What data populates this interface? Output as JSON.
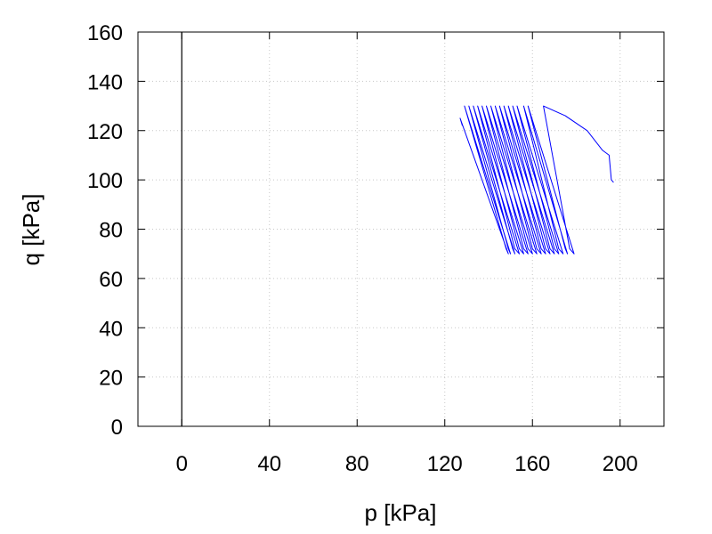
{
  "chart_data": {
    "type": "line",
    "xlabel": "p [kPa]",
    "ylabel": "q [kPa]",
    "xlim": [
      -20,
      220
    ],
    "ylim": [
      0,
      160
    ],
    "x_ticks": [
      0,
      40,
      80,
      120,
      160,
      200
    ],
    "y_ticks": [
      0,
      20,
      40,
      60,
      80,
      100,
      120,
      140,
      160
    ],
    "grid": true,
    "vertical_reference_line_x": 0,
    "series": [
      {
        "color": "#0000ff",
        "x": [
          197,
          196,
          195,
          192,
          185,
          175,
          165,
          177,
          179,
          158,
          175,
          176,
          156,
          172,
          174,
          153,
          170,
          172,
          151,
          168,
          170,
          149,
          166,
          168,
          147,
          164,
          166,
          145,
          162,
          164,
          143,
          160,
          162,
          141,
          158,
          160,
          139,
          156,
          158,
          137,
          154,
          156,
          135,
          152,
          154,
          133,
          151,
          152,
          131,
          149,
          150,
          129,
          148,
          149,
          127,
          128
        ],
        "y": [
          99,
          100,
          110,
          112,
          120,
          126,
          130,
          72,
          70,
          130,
          72,
          70,
          130,
          72,
          70,
          130,
          72,
          70,
          130,
          72,
          70,
          130,
          72,
          70,
          130,
          72,
          70,
          130,
          72,
          70,
          130,
          72,
          70,
          130,
          72,
          70,
          130,
          72,
          70,
          130,
          72,
          70,
          130,
          72,
          70,
          130,
          72,
          70,
          130,
          72,
          70,
          130,
          72,
          70,
          125,
          122
        ]
      }
    ]
  }
}
